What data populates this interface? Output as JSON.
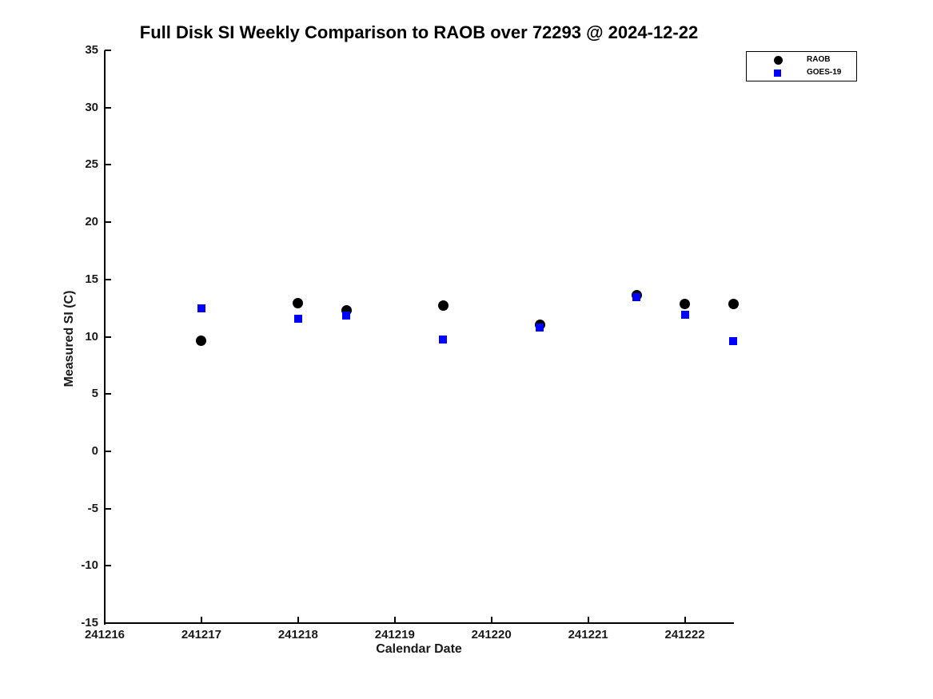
{
  "chart_data": {
    "type": "scatter",
    "title": "Full Disk SI Weekly Comparison to RAOB over 72293 @ 2024-12-22",
    "xlabel": "Calendar Date",
    "ylabel": "Measured SI (C)",
    "xlim": [
      241216,
      241222.5
    ],
    "ylim": [
      -15,
      35
    ],
    "x_ticks": [
      241216,
      241217,
      241218,
      241219,
      241220,
      241221,
      241222
    ],
    "y_ticks": [
      -15,
      -10,
      -5,
      0,
      5,
      10,
      15,
      20,
      25,
      30,
      35
    ],
    "grid": false,
    "legend_position": "top-right",
    "background": "#ffffff",
    "series": [
      {
        "name": "RAOB",
        "marker": "circle",
        "color": "#000000",
        "points": [
          {
            "x": 241217.0,
            "y": 9.65
          },
          {
            "x": 241218.0,
            "y": 12.95
          },
          {
            "x": 241218.5,
            "y": 12.3
          },
          {
            "x": 241219.5,
            "y": 12.7
          },
          {
            "x": 241220.5,
            "y": 11.05
          },
          {
            "x": 241221.5,
            "y": 13.65
          },
          {
            "x": 241222.0,
            "y": 12.85
          },
          {
            "x": 241222.5,
            "y": 12.85
          }
        ]
      },
      {
        "name": "GOES-19",
        "marker": "square",
        "color": "#0000ff",
        "points": [
          {
            "x": 241217.0,
            "y": 12.45
          },
          {
            "x": 241218.0,
            "y": 11.55
          },
          {
            "x": 241218.5,
            "y": 11.85
          },
          {
            "x": 241219.5,
            "y": 9.75
          },
          {
            "x": 241220.5,
            "y": 10.8
          },
          {
            "x": 241221.5,
            "y": 13.45
          },
          {
            "x": 241222.0,
            "y": 11.9
          },
          {
            "x": 241222.5,
            "y": 9.6
          }
        ]
      }
    ]
  }
}
